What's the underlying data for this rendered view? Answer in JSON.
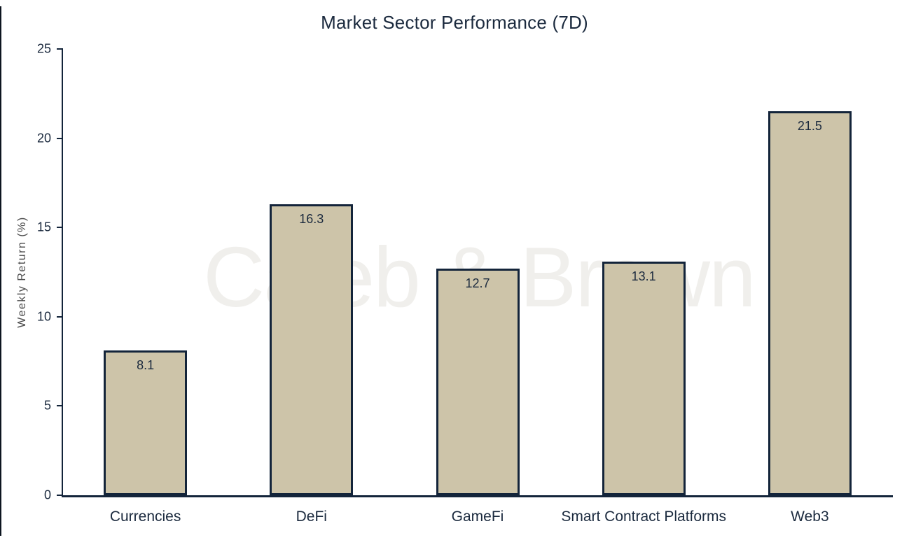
{
  "watermark": "Caleb & Brown",
  "chart_data": {
    "type": "bar",
    "title": "Market Sector Performance (7D)",
    "categories": [
      "Currencies",
      "DeFi",
      "GameFi",
      "Smart Contract Platforms",
      "Web3"
    ],
    "values": [
      8.1,
      16.3,
      12.7,
      13.1,
      21.5
    ],
    "value_labels": [
      "8.1",
      "16.3",
      "12.7",
      "13.1",
      "21.5"
    ],
    "xlabel": "",
    "ylabel": "Weekly Return (%)",
    "ylim": [
      0,
      25
    ],
    "yticks": [
      "0",
      "5",
      "10",
      "15",
      "20",
      "25"
    ],
    "grid": false,
    "legend": false,
    "bar_labels_inside": true,
    "colors": {
      "bar_fill": "#cdc4a9",
      "bar_border": "#13243a",
      "axis": "#13243a",
      "text": "#1b2a3e",
      "ylabel_text": "#4c4c4c",
      "watermark": "#f0efec",
      "background": "#ffffff"
    }
  }
}
